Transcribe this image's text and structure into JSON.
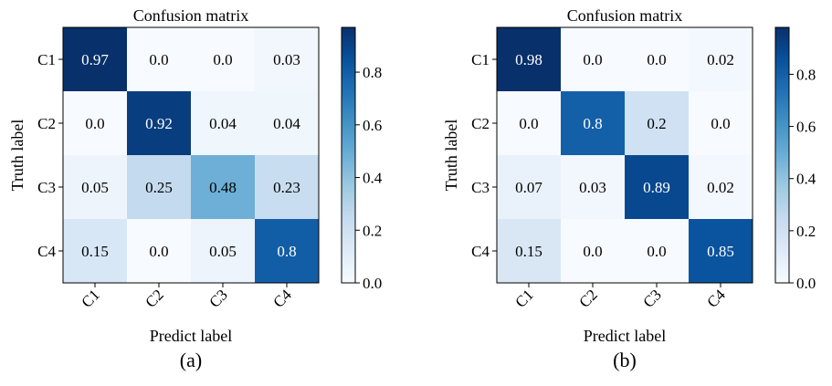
{
  "chart_data": [
    {
      "type": "heatmap",
      "title": "Confusion matrix",
      "xlabel": "Predict label",
      "ylabel": "Truth label",
      "panel_label": "(a)",
      "row_labels": [
        "C1",
        "C2",
        "C3",
        "C4"
      ],
      "col_labels": [
        "C1",
        "C2",
        "C3",
        "C4"
      ],
      "values": [
        [
          0.97,
          0.0,
          0.0,
          0.03
        ],
        [
          0.0,
          0.92,
          0.04,
          0.04
        ],
        [
          0.05,
          0.25,
          0.48,
          0.23
        ],
        [
          0.15,
          0.0,
          0.05,
          0.8
        ]
      ],
      "value_labels": [
        [
          "0.97",
          "0.0",
          "0.0",
          "0.03"
        ],
        [
          "0.0",
          "0.92",
          "0.04",
          "0.04"
        ],
        [
          "0.05",
          "0.25",
          "0.48",
          "0.23"
        ],
        [
          "0.15",
          "0.0",
          "0.05",
          "0.8"
        ]
      ],
      "colorscale": "Blues",
      "colorbar": {
        "range": [
          0.0,
          0.97
        ],
        "ticks": [
          0.0,
          0.2,
          0.4,
          0.6,
          0.8
        ],
        "tick_labels": [
          "0.0",
          "0.2",
          "0.4",
          "0.6",
          "0.8"
        ]
      }
    },
    {
      "type": "heatmap",
      "title": "Confusion matrix",
      "xlabel": "Predict label",
      "ylabel": "Truth label",
      "panel_label": "(b)",
      "row_labels": [
        "C1",
        "C2",
        "C3",
        "C4"
      ],
      "col_labels": [
        "C1",
        "C2",
        "C3",
        "C4"
      ],
      "values": [
        [
          0.98,
          0.0,
          0.0,
          0.02
        ],
        [
          0.0,
          0.8,
          0.2,
          0.0
        ],
        [
          0.07,
          0.03,
          0.89,
          0.02
        ],
        [
          0.15,
          0.0,
          0.0,
          0.85
        ]
      ],
      "value_labels": [
        [
          "0.98",
          "0.0",
          "0.0",
          "0.02"
        ],
        [
          "0.0",
          "0.8",
          "0.2",
          "0.0"
        ],
        [
          "0.07",
          "0.03",
          "0.89",
          "0.02"
        ],
        [
          "0.15",
          "0.0",
          "0.0",
          "0.85"
        ]
      ],
      "colorscale": "Blues",
      "colorbar": {
        "range": [
          0.0,
          0.98
        ],
        "ticks": [
          0.0,
          0.2,
          0.4,
          0.6,
          0.8
        ],
        "tick_labels": [
          "0.0",
          "0.2",
          "0.4",
          "0.6",
          "0.8"
        ]
      }
    }
  ]
}
